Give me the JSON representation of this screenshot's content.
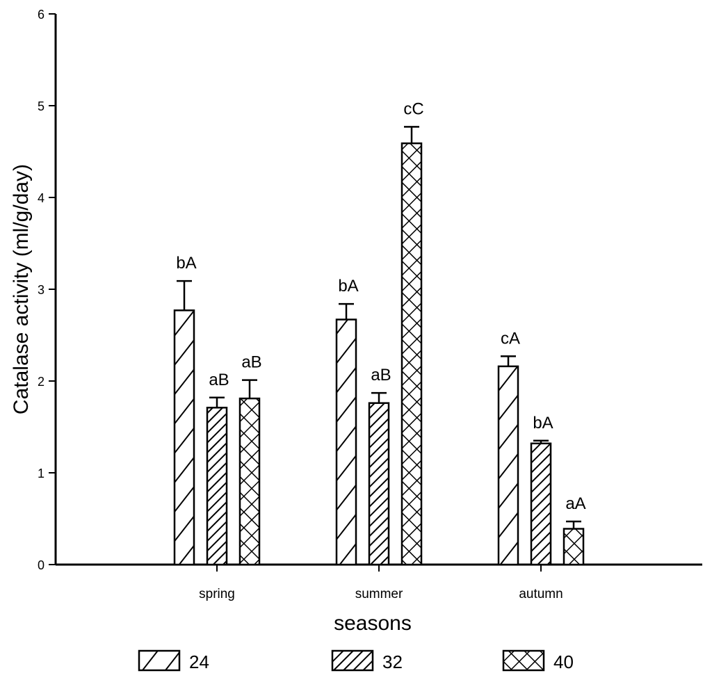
{
  "chart_data": {
    "type": "bar",
    "xlabel": "seasons",
    "ylabel": "Catalase activity (ml/g/day)",
    "ylim": [
      0,
      6
    ],
    "yticks": [
      "0",
      "1",
      "2",
      "3",
      "4",
      "5",
      "6"
    ],
    "categories": [
      "spring",
      "summer",
      "autumn"
    ],
    "legend_position": "bottom",
    "series": [
      {
        "name": "24",
        "pattern": "diagonal-sparse",
        "values": [
          2.77,
          2.67,
          2.16
        ],
        "errors": [
          0.32,
          0.17,
          0.11
        ],
        "labels": [
          "bA",
          "bA",
          "cA"
        ]
      },
      {
        "name": "32",
        "pattern": "diagonal-dense",
        "values": [
          1.71,
          1.76,
          1.32
        ],
        "errors": [
          0.11,
          0.11,
          0.03
        ],
        "labels": [
          "aB",
          "aB",
          "bA"
        ]
      },
      {
        "name": "40",
        "pattern": "crosshatch",
        "values": [
          1.81,
          4.59,
          0.39
        ],
        "errors": [
          0.2,
          0.18,
          0.08
        ],
        "labels": [
          "aB",
          "cC",
          "aA"
        ]
      }
    ]
  }
}
